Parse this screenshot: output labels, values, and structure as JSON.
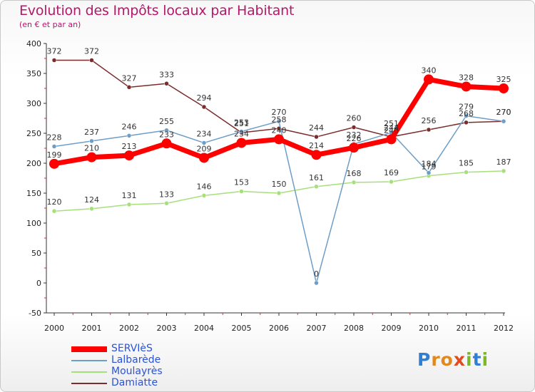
{
  "header": {
    "title": "Evolution des Impôts locaux par Habitant",
    "subtitle": "(en € et par an)"
  },
  "chart_data": {
    "type": "line",
    "title": "Evolution des Impôts locaux par Habitant",
    "subtitle": "(en € et par an)",
    "xlabel": "",
    "ylabel": "",
    "ylim": [
      -50,
      400
    ],
    "yticks": [
      -50,
      0,
      50,
      100,
      150,
      200,
      250,
      300,
      350,
      400
    ],
    "x": [
      2000,
      2001,
      2002,
      2003,
      2004,
      2005,
      2006,
      2007,
      2008,
      2009,
      2010,
      2011,
      2012
    ],
    "grid": false,
    "legend_position": "bottom-left",
    "series": [
      {
        "name": "SERVIèS",
        "color": "#ff0000",
        "values": [
          199,
          210,
          213,
          233,
          209,
          234,
          240,
          214,
          226,
          240,
          340,
          328,
          325
        ]
      },
      {
        "name": "Lalbarède",
        "color": "#6e9ec8",
        "values": [
          228,
          237,
          246,
          255,
          234,
          253,
          270,
          0,
          232,
          251,
          184,
          279,
          270
        ]
      },
      {
        "name": "Moulayrès",
        "color": "#a6e07a",
        "values": [
          120,
          124,
          131,
          133,
          146,
          153,
          150,
          161,
          168,
          169,
          179,
          185,
          187
        ]
      },
      {
        "name": "Damiatte",
        "color": "#7b2d2d",
        "values": [
          372,
          372,
          327,
          333,
          294,
          251,
          258,
          244,
          260,
          244,
          256,
          268,
          270
        ]
      }
    ]
  },
  "logo": {
    "text": "Proxiti"
  }
}
